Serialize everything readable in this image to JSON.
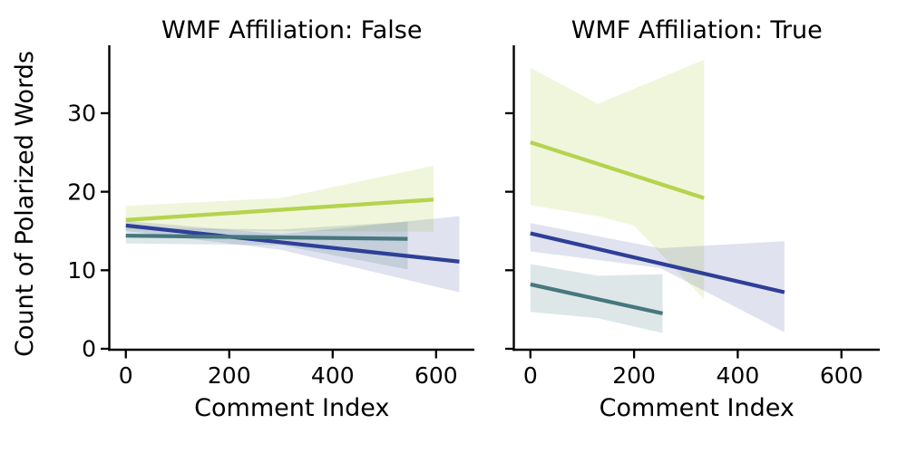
{
  "figure": {
    "background": "#ffffff",
    "text_color": "#000000"
  },
  "chart_data": {
    "type": "line",
    "kind": "faceted-regression-with-ci",
    "xlabel": "Comment Index",
    "ylabel": "Count of Polarized Words",
    "grid": false,
    "legend": null,
    "panels": [
      {
        "title": "WMF Affiliation: False",
        "xlim": [
          -32,
          674
        ],
        "ylim": [
          -0.12,
          38.65
        ],
        "xticks": [
          0,
          200,
          400,
          600
        ],
        "yticks": [
          0,
          10,
          20,
          30
        ],
        "show_ytick_labels": true,
        "series": [
          {
            "name": "yellow-green",
            "color": "#b4d44e",
            "band_opacity": 0.2,
            "line": {
              "x": [
                0,
                595
              ],
              "y": [
                16.4,
                19.0
              ]
            },
            "ci_upper": [
              [
                0,
                18.2
              ],
              [
                300,
                19.2
              ],
              [
                595,
                23.3
              ]
            ],
            "ci_lower": [
              [
                0,
                15.2
              ],
              [
                300,
                15.0
              ],
              [
                595,
                14.9
              ]
            ]
          },
          {
            "name": "navy-blue",
            "color": "#2e3f97",
            "band_opacity": 0.15,
            "line": {
              "x": [
                0,
                645
              ],
              "y": [
                15.7,
                11.1
              ]
            },
            "ci_upper": [
              [
                0,
                16.3
              ],
              [
                300,
                14.6
              ],
              [
                645,
                16.9
              ]
            ],
            "ci_lower": [
              [
                0,
                15.0
              ],
              [
                300,
                12.6
              ],
              [
                645,
                7.2
              ]
            ]
          },
          {
            "name": "teal",
            "color": "#46787d",
            "band_opacity": 0.18,
            "line": {
              "x": [
                0,
                545
              ],
              "y": [
                14.4,
                14.0
              ]
            },
            "ci_upper": [
              [
                0,
                15.4
              ],
              [
                300,
                15.2
              ],
              [
                545,
                16.2
              ]
            ],
            "ci_lower": [
              [
                0,
                13.4
              ],
              [
                300,
                13.2
              ],
              [
                545,
                10.1
              ]
            ]
          }
        ]
      },
      {
        "title": "WMF Affiliation: True",
        "xlim": [
          -32,
          674
        ],
        "ylim": [
          -0.12,
          38.65
        ],
        "xticks": [
          0,
          200,
          400,
          600
        ],
        "yticks": [
          0,
          10,
          20,
          30
        ],
        "show_ytick_labels": false,
        "series": [
          {
            "name": "yellow-green",
            "color": "#b4d44e",
            "band_opacity": 0.2,
            "line": {
              "x": [
                0,
                335
              ],
              "y": [
                26.3,
                19.2
              ]
            },
            "ci_upper": [
              [
                0,
                35.8
              ],
              [
                130,
                31.2
              ],
              [
                335,
                36.8
              ]
            ],
            "ci_lower": [
              [
                0,
                18.3
              ],
              [
                130,
                16.9
              ],
              [
                200,
                15.7
              ],
              [
                335,
                6.3
              ]
            ]
          },
          {
            "name": "navy-blue",
            "color": "#2e3f97",
            "band_opacity": 0.15,
            "line": {
              "x": [
                0,
                490
              ],
              "y": [
                14.7,
                7.2
              ]
            },
            "ci_upper": [
              [
                0,
                16.0
              ],
              [
                250,
                12.8
              ],
              [
                490,
                13.7
              ]
            ],
            "ci_lower": [
              [
                0,
                12.4
              ],
              [
                250,
                10.3
              ],
              [
                490,
                2.1
              ]
            ]
          },
          {
            "name": "teal",
            "color": "#46787d",
            "band_opacity": 0.18,
            "line": {
              "x": [
                0,
                255
              ],
              "y": [
                8.2,
                4.5
              ]
            },
            "ci_upper": [
              [
                0,
                10.8
              ],
              [
                130,
                9.3
              ],
              [
                255,
                9.5
              ]
            ],
            "ci_lower": [
              [
                0,
                4.7
              ],
              [
                130,
                3.9
              ],
              [
                255,
                2.0
              ]
            ]
          }
        ]
      }
    ]
  }
}
